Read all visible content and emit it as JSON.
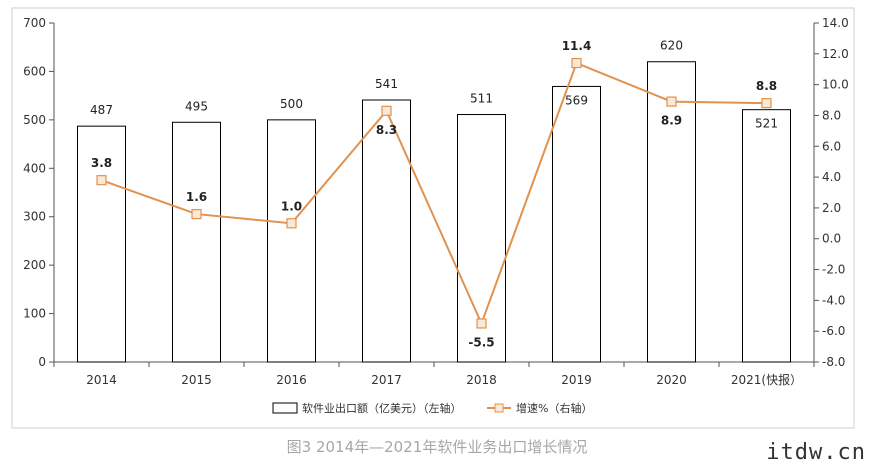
{
  "chart_data": {
    "type": "bar+line",
    "categories": [
      "2014",
      "2015",
      "2016",
      "2017",
      "2018",
      "2019",
      "2020",
      "2021(快报）"
    ],
    "series": [
      {
        "name": "软件业出口额（亿美元）（左轴）",
        "type": "bar",
        "axis": "left",
        "values": [
          487,
          495,
          500,
          541,
          511,
          569,
          620,
          521
        ]
      },
      {
        "name": "增速%（右轴）",
        "type": "line",
        "axis": "right",
        "values": [
          3.8,
          1.6,
          1.0,
          8.3,
          -5.5,
          11.4,
          8.9,
          8.8
        ]
      }
    ],
    "bar_labels": [
      "487",
      "495",
      "500",
      "541",
      "511",
      "569",
      "620",
      "521"
    ],
    "line_labels": [
      "3.8",
      "1.6",
      "1.0",
      "8.3",
      "-5.5",
      "11.4",
      "8.9",
      "8.8"
    ],
    "left_axis": {
      "min": 0,
      "max": 700,
      "step": 100,
      "ticks": [
        "0",
        "100",
        "200",
        "300",
        "400",
        "500",
        "600",
        "700"
      ]
    },
    "right_axis": {
      "min": -8,
      "max": 14,
      "step": 2,
      "ticks": [
        "-8.0",
        "-6.0",
        "-4.0",
        "-2.0",
        "0.0",
        "2.0",
        "4.0",
        "6.0",
        "8.0",
        "10.0",
        "12.0",
        "14.0"
      ]
    },
    "legend_placement": "bottom",
    "colors": {
      "bar_fill": "#ffffff",
      "bar_stroke": "#000000",
      "line": "#e0924e",
      "marker_fill": "#fbe9d8"
    }
  },
  "caption": "图3  2014年—2021年软件业务出口增长情况",
  "watermark": "itdw.cn"
}
